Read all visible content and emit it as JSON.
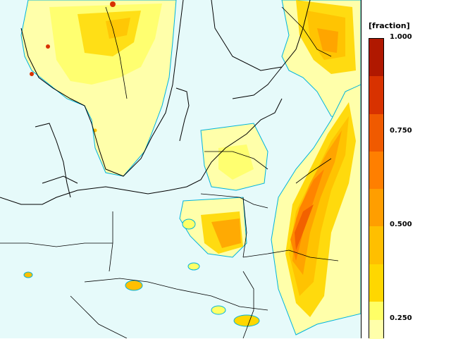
{
  "legend": {
    "unit": "[fraction]",
    "ticks": [
      "1.000",
      "0.750",
      "0.500",
      "0.250"
    ],
    "ticks_values": [
      1.0,
      0.75,
      0.5,
      0.25
    ],
    "scale_min": 0.2,
    "scale_max": 1.0,
    "bins": [
      {
        "min": 0.2,
        "max": 0.25,
        "color": "#ffffaa"
      },
      {
        "min": 0.25,
        "max": 0.3,
        "color": "#ffff66"
      },
      {
        "min": 0.3,
        "max": 0.4,
        "color": "#ffd700"
      },
      {
        "min": 0.4,
        "max": 0.5,
        "color": "#ffbf00"
      },
      {
        "min": 0.5,
        "max": 0.6,
        "color": "#ff9e00"
      },
      {
        "min": 0.6,
        "max": 0.7,
        "color": "#ff7f00"
      },
      {
        "min": 0.7,
        "max": 0.8,
        "color": "#f05a00"
      },
      {
        "min": 0.8,
        "max": 0.9,
        "color": "#d83200"
      },
      {
        "min": 0.9,
        "max": 1.0,
        "color": "#b01800"
      }
    ]
  },
  "colors": {
    "land": "#ffffff",
    "sea": "#e6fafa",
    "coast": "#000000",
    "contour": "#00b4dc"
  }
}
